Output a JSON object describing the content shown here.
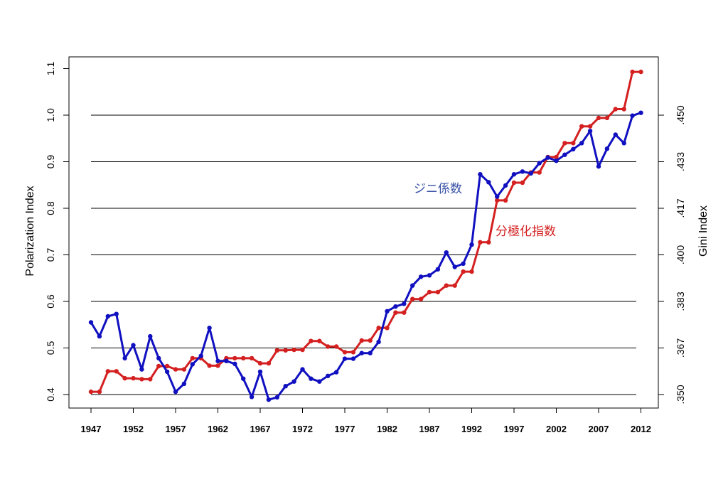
{
  "chart_data": {
    "type": "line",
    "title": "",
    "xlabel": "",
    "ylabel": "Polarization Index",
    "ylabel_right": "Gini Index",
    "ylim": [
      0.4,
      1.1
    ],
    "y_ticks": [
      "0.4",
      "0.5",
      "0.6",
      "0.7",
      "0.8",
      "0.9",
      "1.0",
      "1.1"
    ],
    "y_tick_values": [
      0.4,
      0.5,
      0.6,
      0.7,
      0.8,
      0.9,
      1.0,
      1.1
    ],
    "y_right_ticks": [
      ".350",
      ".367",
      ".383",
      ".400",
      ".417",
      ".433",
      ".450"
    ],
    "y_right_tick_values": [
      0.4,
      0.5,
      0.6,
      0.7,
      0.8,
      0.9,
      1.0
    ],
    "gridlines": [
      0.4,
      0.5,
      0.6,
      0.7,
      0.8,
      0.9,
      1.0
    ],
    "x_tick_labels": [
      "1947",
      "1952",
      "1957",
      "1962",
      "1967",
      "1972",
      "1977",
      "1982",
      "1987",
      "1992",
      "1997",
      "2002",
      "2007",
      "2012"
    ],
    "x_start": 1947,
    "x_end": 2012,
    "series": [
      {
        "name": "ジニ係数",
        "color": "#1010c0",
        "values": [
          0.555,
          0.525,
          0.568,
          0.573,
          0.478,
          0.506,
          0.454,
          0.525,
          0.478,
          0.449,
          0.406,
          0.423,
          0.465,
          0.483,
          0.543,
          0.472,
          0.472,
          0.466,
          0.434,
          0.395,
          0.449,
          0.389,
          0.394,
          0.418,
          0.428,
          0.454,
          0.434,
          0.428,
          0.44,
          0.448,
          0.477,
          0.477,
          0.489,
          0.489,
          0.513,
          0.579,
          0.589,
          0.595,
          0.634,
          0.653,
          0.656,
          0.669,
          0.705,
          0.674,
          0.681,
          0.722,
          0.873,
          0.856,
          0.825,
          0.849,
          0.873,
          0.879,
          0.875,
          0.897,
          0.909,
          0.902,
          0.915,
          0.927,
          0.94,
          0.966,
          0.89,
          0.928,
          0.958,
          0.94,
          0.999,
          1.005
        ]
      },
      {
        "name": "分極化指数",
        "color": "#d42020",
        "values": [
          0.406,
          0.406,
          0.45,
          0.45,
          0.435,
          0.435,
          0.433,
          0.433,
          0.461,
          0.461,
          0.454,
          0.454,
          0.478,
          0.478,
          0.462,
          0.462,
          0.478,
          0.478,
          0.478,
          0.478,
          0.467,
          0.467,
          0.495,
          0.495,
          0.496,
          0.496,
          0.515,
          0.515,
          0.503,
          0.503,
          0.491,
          0.491,
          0.516,
          0.516,
          0.543,
          0.543,
          0.576,
          0.576,
          0.605,
          0.605,
          0.62,
          0.62,
          0.634,
          0.634,
          0.664,
          0.664,
          0.727,
          0.727,
          0.817,
          0.817,
          0.855,
          0.855,
          0.877,
          0.877,
          0.91,
          0.91,
          0.94,
          0.94,
          0.976,
          0.976,
          0.994,
          0.994,
          1.013,
          1.013,
          1.093,
          1.093
        ]
      }
    ],
    "annotations": [
      {
        "text": "ジニ係数",
        "series": 0
      },
      {
        "text": "分極化指数",
        "series": 1
      }
    ]
  }
}
